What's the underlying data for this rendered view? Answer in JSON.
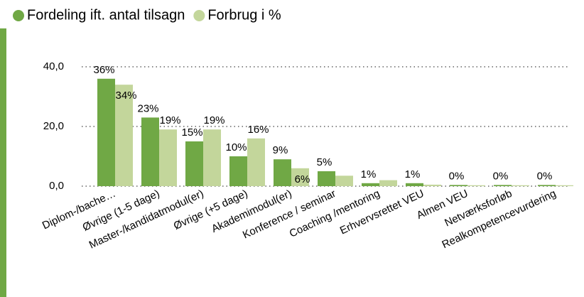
{
  "chart_data": {
    "type": "bar",
    "categories": [
      "Diplom-/bache…",
      "Øvrige (1-5 dage)",
      "Master-/kandidatmodul(er)",
      "Øvrige (+5 dage)",
      "Akademimodul(er)",
      "Konference / seminar",
      "Coaching /mentoring",
      "Erhvervsrettet VEU",
      "Almen VEU",
      "Netværksforløb",
      "Realkompetencevurdering"
    ],
    "series": [
      {
        "name": "Fordeling ift. antal tilsagn",
        "color": "#70a845",
        "values": [
          36,
          23,
          15,
          10,
          9,
          5,
          1,
          1,
          0.4,
          0.4,
          0.4
        ],
        "value_labels": [
          "36%",
          "23%",
          "15%",
          "10%",
          "9%",
          "5%",
          "1%",
          "1%",
          "0%",
          "0%",
          "0%"
        ]
      },
      {
        "name": "Forbrug i %",
        "color": "#c3d69b",
        "values": [
          34,
          19,
          19,
          16,
          6,
          3.5,
          2,
          0.5,
          0.3,
          0.3,
          0.3
        ],
        "value_labels": [
          "34%",
          "19%",
          "19%",
          "16%",
          "6%",
          null,
          null,
          null,
          null,
          null,
          null
        ]
      }
    ],
    "ylim": [
      0,
      40
    ],
    "yticks": [
      {
        "value": 0,
        "label": "0,0"
      },
      {
        "value": 20,
        "label": "20,0"
      },
      {
        "value": 40,
        "label": "40,0"
      }
    ],
    "grid": true,
    "legend": "top"
  }
}
